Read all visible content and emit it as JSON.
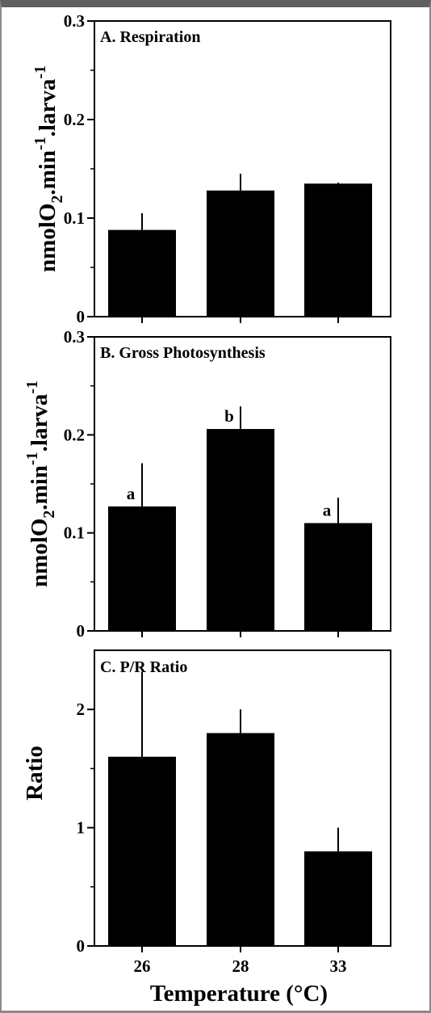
{
  "chart_data": [
    {
      "type": "bar",
      "panel": "A",
      "title": "A.  Respiration",
      "ylabel_parts": [
        "nmolO",
        "2",
        ".min",
        "-1",
        ".larva",
        "-1"
      ],
      "categories": [
        "26",
        "28",
        "33"
      ],
      "values": [
        0.088,
        0.128,
        0.135
      ],
      "errors": [
        0.017,
        0.017,
        0.001
      ],
      "sig_labels": [
        "",
        "",
        ""
      ],
      "ylim": [
        0,
        0.3
      ],
      "yticks": [
        0,
        0.1,
        0.2,
        0.3
      ],
      "ytick_labels": [
        "0",
        "0.1",
        "0.2",
        "0.3"
      ],
      "minor_yticks": [
        0.05,
        0.15,
        0.25
      ],
      "grid": false
    },
    {
      "type": "bar",
      "panel": "B",
      "title": "B.  Gross Photosynthesis",
      "ylabel_parts": [
        "nmolO",
        "2",
        ".min",
        "-1",
        ".larva",
        "-1"
      ],
      "categories": [
        "26",
        "28",
        "33"
      ],
      "values": [
        0.127,
        0.206,
        0.11
      ],
      "errors": [
        0.044,
        0.023,
        0.026
      ],
      "sig_labels": [
        "a",
        "b",
        "a"
      ],
      "ylim": [
        0,
        0.3
      ],
      "yticks": [
        0,
        0.1,
        0.2,
        0.3
      ],
      "ytick_labels": [
        "0",
        "0.1",
        "0.2",
        "0.3"
      ],
      "minor_yticks": [
        0.05,
        0.15,
        0.25
      ],
      "grid": false
    },
    {
      "type": "bar",
      "panel": "C",
      "title": "C.  P/R Ratio",
      "ylabel": "Ratio",
      "categories": [
        "26",
        "28",
        "33"
      ],
      "values": [
        1.6,
        1.8,
        0.8
      ],
      "errors": [
        0.72,
        0.2,
        0.2
      ],
      "sig_labels": [
        "",
        "",
        ""
      ],
      "ylim": [
        0,
        2.5
      ],
      "yticks": [
        0,
        1,
        2
      ],
      "ytick_labels": [
        "0",
        "1",
        "2"
      ],
      "minor_yticks": [
        0.5,
        1.5
      ],
      "grid": false,
      "xlabel": "Temperature (°C)"
    }
  ]
}
